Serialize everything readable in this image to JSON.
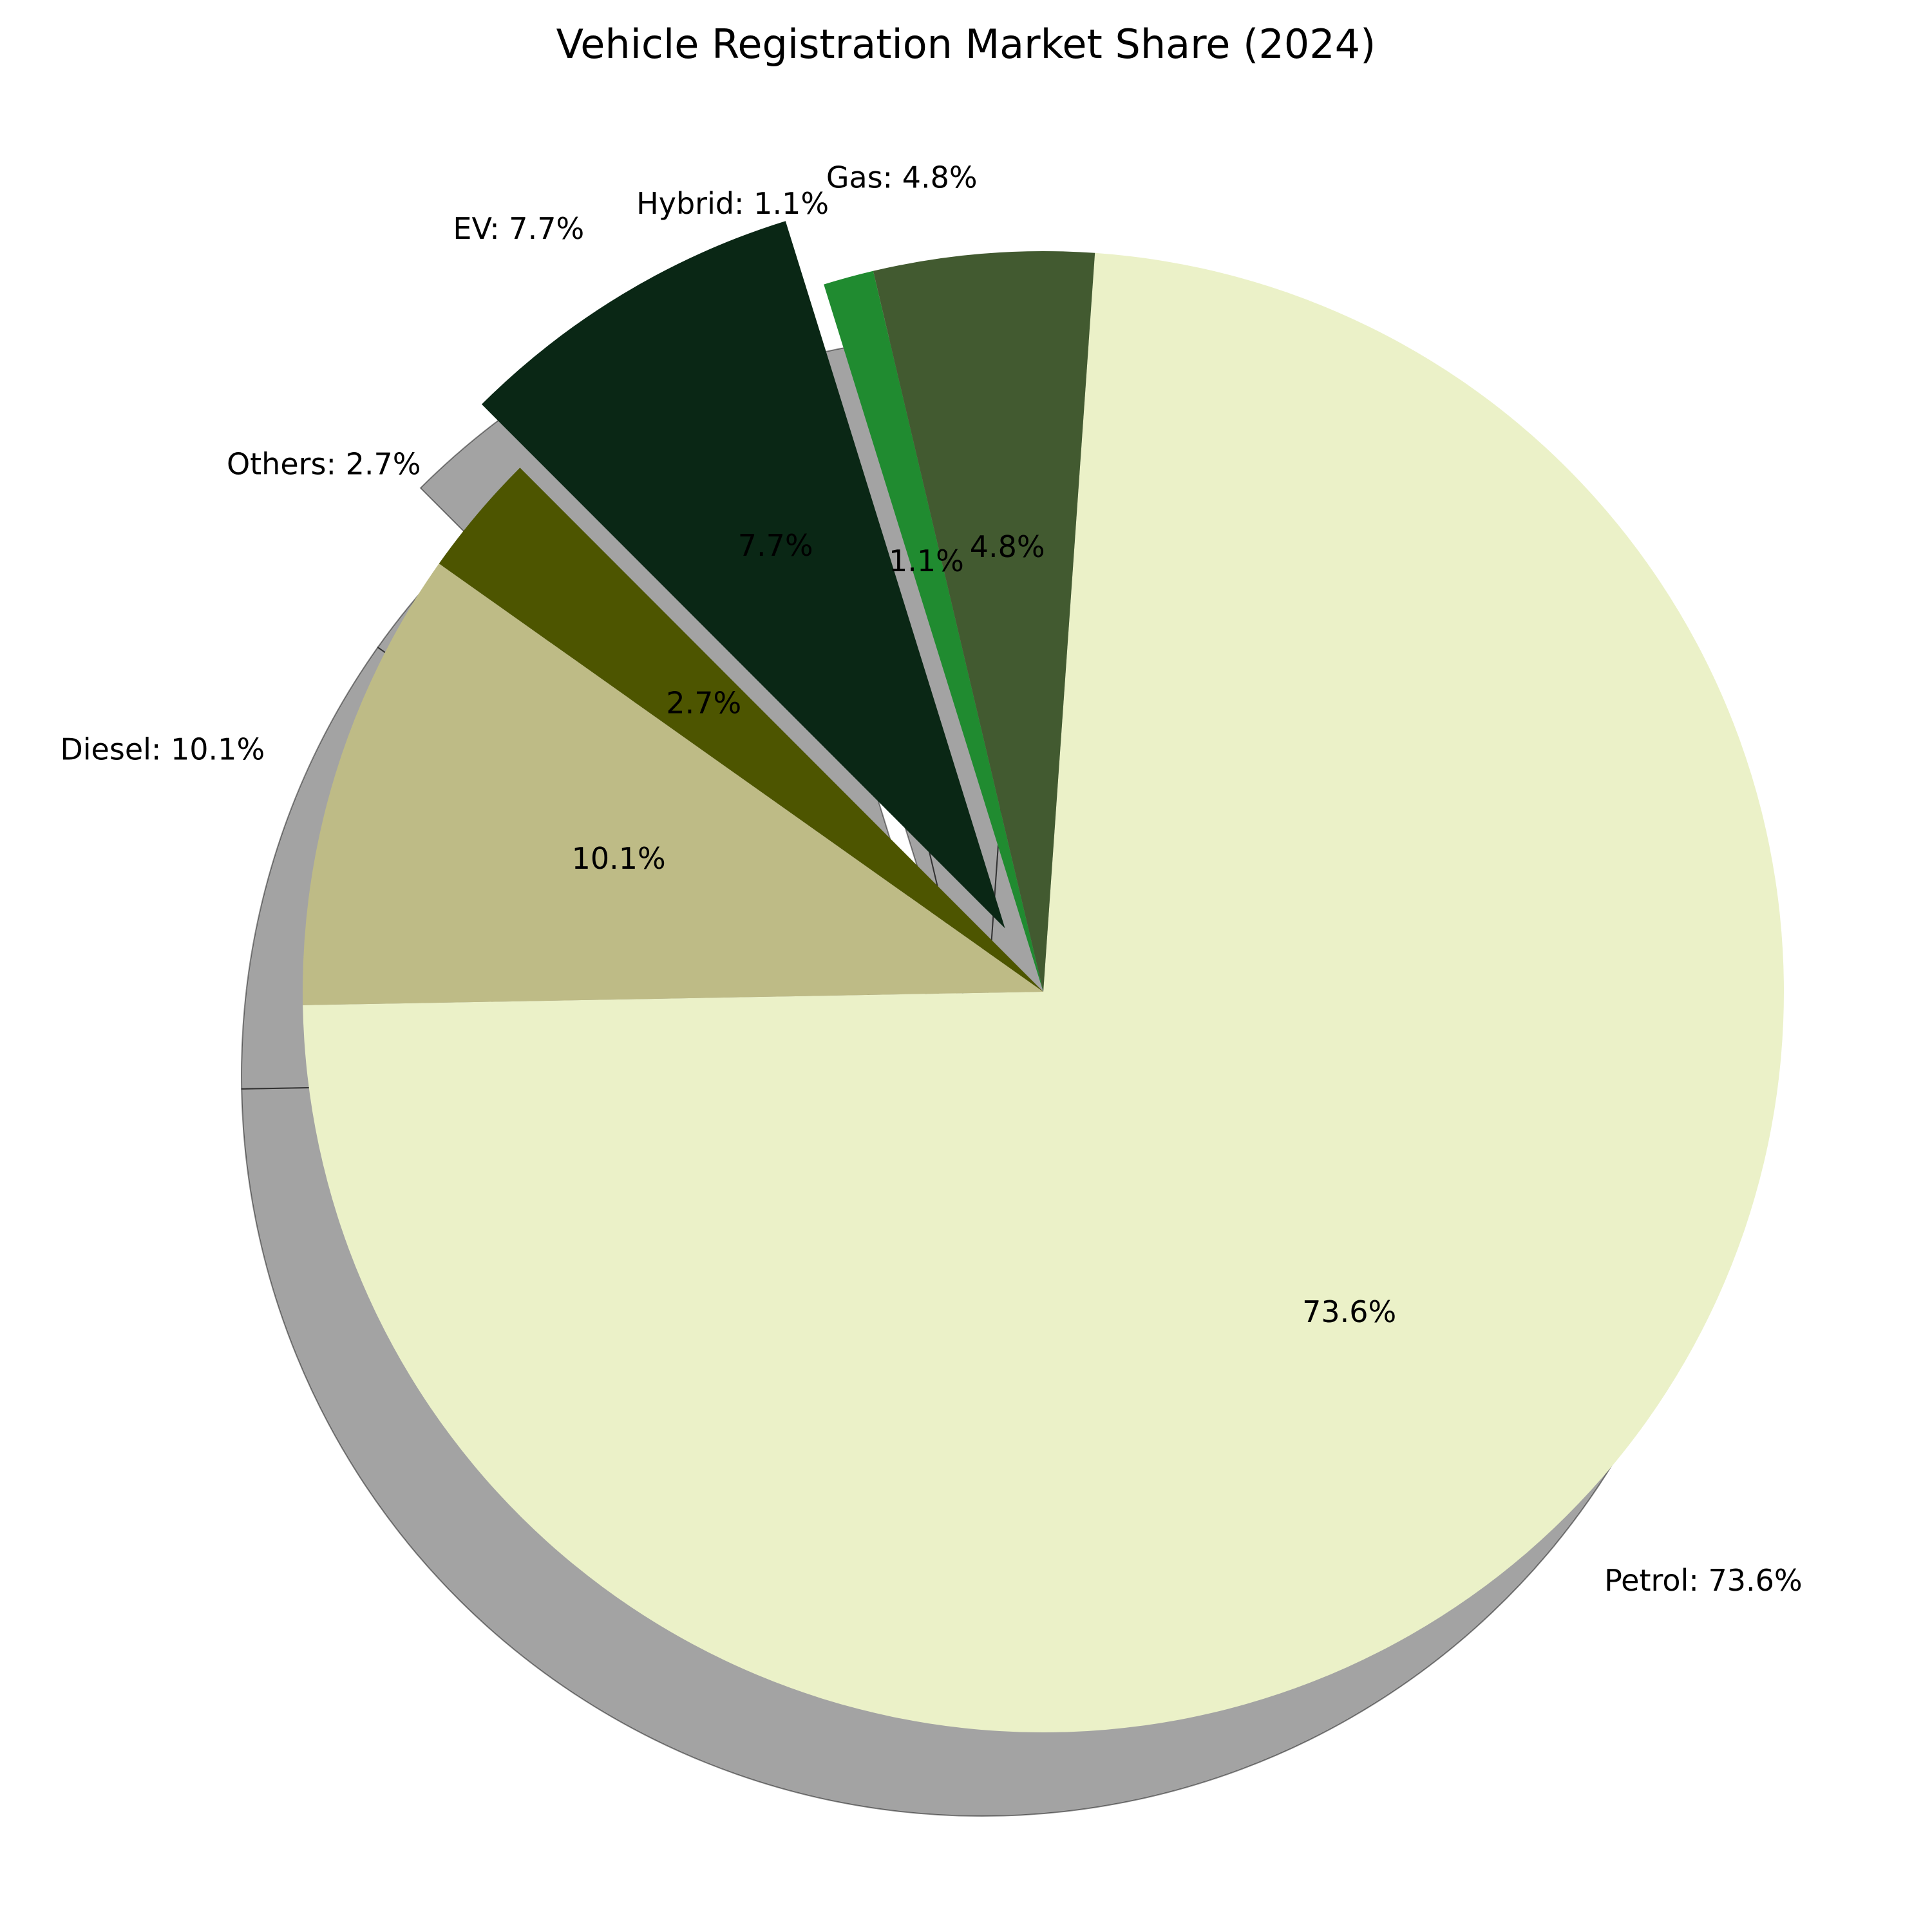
{
  "chart_data": {
    "type": "pie",
    "title": "Vehicle Registration Market Share (2024)",
    "slices": [
      {
        "name": "Petrol",
        "value": 73.6,
        "label": "Petrol: 73.6%",
        "pct_label": "73.6%",
        "color": "#ebf1c8",
        "explode": 0
      },
      {
        "name": "Diesel",
        "value": 10.1,
        "label": "Diesel: 10.1%",
        "pct_label": "10.1%",
        "color": "#bebb86",
        "explode": 0
      },
      {
        "name": "Others",
        "value": 2.7,
        "label": "Others: 2.7%",
        "pct_label": "2.7%",
        "color": "#4d5500",
        "explode": 0
      },
      {
        "name": "EV",
        "value": 7.7,
        "label": "EV: 7.7%",
        "pct_label": "7.7%",
        "color": "#0a2715",
        "explode": 0.1
      },
      {
        "name": "Hybrid",
        "value": 1.1,
        "label": "Hybrid: 1.1%",
        "pct_label": "1.1%",
        "color": "#208b30",
        "explode": 0
      },
      {
        "name": "Gas",
        "value": 4.8,
        "label": "Gas: 4.8%",
        "pct_label": "4.8%",
        "color": "#425a30",
        "explode": 0
      }
    ],
    "start_angle_deg": -86,
    "direction": "clockwise",
    "shadow": true,
    "legend": "none"
  }
}
